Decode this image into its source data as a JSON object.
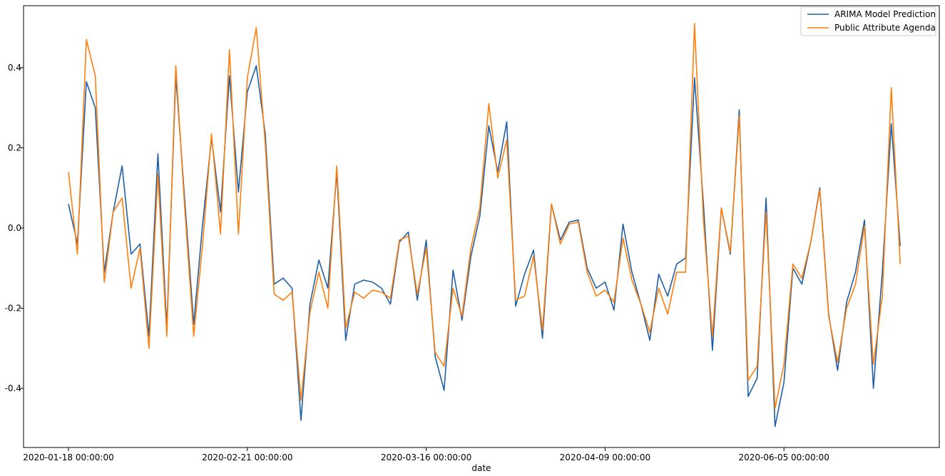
{
  "chart_data": {
    "type": "line",
    "title": "",
    "xlabel": "date",
    "ylabel": "",
    "ylim": [
      -0.52,
      0.53
    ],
    "yticks": [
      "-0.4",
      "-0.2",
      "0.0",
      "0.2",
      "0.4"
    ],
    "ytick_values": [
      -0.4,
      -0.2,
      0.0,
      0.2,
      0.4
    ],
    "xticks": [
      {
        "label": "2020-01-18 00:00:00",
        "index": 0
      },
      {
        "label": "2020-02-21 00:00:00",
        "index": 20
      },
      {
        "label": "2020-03-16 00:00:00",
        "index": 40
      },
      {
        "label": "2020-04-09 00:00:00",
        "index": 60
      },
      {
        "label": "2020-06-05 00:00:00",
        "index": 80
      }
    ],
    "x_count": 94,
    "grid": false,
    "legend_position": "upper right",
    "series": [
      {
        "name": "ARIMA Model Prediction",
        "color": "#1f5fa6",
        "values": [
          0.06,
          -0.04,
          0.365,
          0.3,
          -0.11,
          0.04,
          0.155,
          -0.065,
          -0.04,
          -0.27,
          0.185,
          -0.25,
          0.38,
          0.07,
          -0.24,
          0.01,
          0.225,
          0.04,
          0.38,
          0.09,
          0.34,
          0.405,
          0.235,
          -0.14,
          -0.125,
          -0.15,
          -0.48,
          -0.19,
          -0.08,
          -0.15,
          0.14,
          -0.28,
          -0.14,
          -0.13,
          -0.135,
          -0.15,
          -0.19,
          -0.035,
          -0.01,
          -0.18,
          -0.03,
          -0.32,
          -0.405,
          -0.105,
          -0.23,
          -0.07,
          0.03,
          0.255,
          0.14,
          0.265,
          -0.195,
          -0.115,
          -0.055,
          -0.275,
          0.06,
          -0.03,
          0.015,
          0.02,
          -0.1,
          -0.15,
          -0.135,
          -0.205,
          0.01,
          -0.11,
          -0.19,
          -0.28,
          -0.115,
          -0.17,
          -0.09,
          -0.075,
          0.375,
          0.06,
          -0.305,
          0.05,
          -0.065,
          0.295,
          -0.42,
          -0.375,
          0.075,
          -0.495,
          -0.385,
          -0.1,
          -0.14,
          -0.035,
          0.1,
          -0.215,
          -0.355,
          -0.185,
          -0.11,
          0.02,
          -0.4,
          -0.11,
          0.26,
          -0.045
        ]
      },
      {
        "name": "Public Attribute Agenda",
        "color": "#ff7f0e",
        "values": [
          0.14,
          -0.065,
          0.47,
          0.38,
          -0.135,
          0.04,
          0.075,
          -0.15,
          -0.05,
          -0.3,
          0.135,
          -0.27,
          0.405,
          0.05,
          -0.27,
          -0.04,
          0.235,
          -0.015,
          0.445,
          -0.015,
          0.375,
          0.5,
          0.21,
          -0.165,
          -0.18,
          -0.16,
          -0.43,
          -0.21,
          -0.11,
          -0.2,
          0.155,
          -0.25,
          -0.16,
          -0.175,
          -0.155,
          -0.16,
          -0.175,
          -0.03,
          -0.02,
          -0.165,
          -0.05,
          -0.31,
          -0.345,
          -0.15,
          -0.22,
          -0.05,
          0.05,
          0.31,
          0.125,
          0.22,
          -0.18,
          -0.17,
          -0.07,
          -0.255,
          0.06,
          -0.04,
          0.01,
          0.015,
          -0.11,
          -0.17,
          -0.155,
          -0.185,
          -0.025,
          -0.13,
          -0.19,
          -0.26,
          -0.15,
          -0.215,
          -0.11,
          -0.11,
          0.51,
          0.02,
          -0.27,
          0.05,
          -0.06,
          0.28,
          -0.38,
          -0.345,
          0.04,
          -0.45,
          -0.34,
          -0.09,
          -0.125,
          -0.035,
          0.095,
          -0.22,
          -0.335,
          -0.2,
          -0.14,
          0.005,
          -0.34,
          -0.17,
          0.35,
          -0.09
        ]
      }
    ]
  }
}
